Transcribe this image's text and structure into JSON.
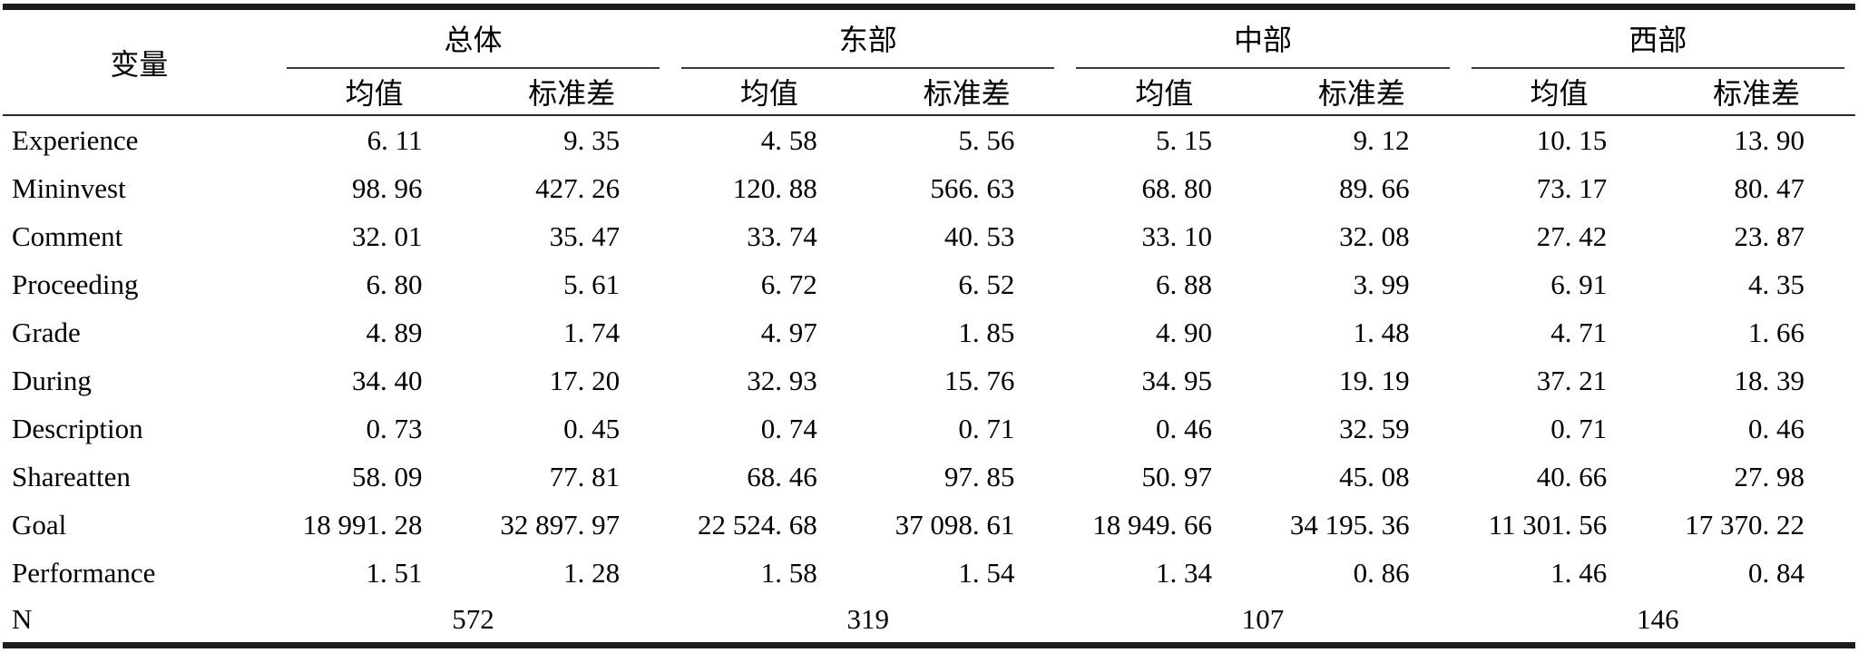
{
  "table": {
    "col_header": "变量",
    "groups": [
      {
        "label": "总体"
      },
      {
        "label": "东部"
      },
      {
        "label": "中部"
      },
      {
        "label": "西部"
      }
    ],
    "sub_headers": [
      "均值",
      "标准差",
      "均值",
      "标准差",
      "均值",
      "标准差",
      "均值",
      "标准差"
    ],
    "rows": [
      {
        "name": "Experience",
        "values": [
          "6. 11",
          "9. 35",
          "4. 58",
          "5. 56",
          "5. 15",
          "9. 12",
          "10. 15",
          "13. 90"
        ]
      },
      {
        "name": "Mininvest",
        "values": [
          "98. 96",
          "427. 26",
          "120. 88",
          "566. 63",
          "68. 80",
          "89. 66",
          "73. 17",
          "80. 47"
        ]
      },
      {
        "name": "Comment",
        "values": [
          "32. 01",
          "35. 47",
          "33. 74",
          "40. 53",
          "33. 10",
          "32. 08",
          "27. 42",
          "23. 87"
        ]
      },
      {
        "name": "Proceeding",
        "values": [
          "6. 80",
          "5. 61",
          "6. 72",
          "6. 52",
          "6. 88",
          "3. 99",
          "6. 91",
          "4. 35"
        ]
      },
      {
        "name": "Grade",
        "values": [
          "4. 89",
          "1. 74",
          "4. 97",
          "1. 85",
          "4. 90",
          "1. 48",
          "4. 71",
          "1. 66"
        ]
      },
      {
        "name": "During",
        "values": [
          "34. 40",
          "17. 20",
          "32. 93",
          "15. 76",
          "34. 95",
          "19. 19",
          "37. 21",
          "18. 39"
        ]
      },
      {
        "name": "Description",
        "values": [
          "0. 73",
          "0. 45",
          "0. 74",
          "0. 71",
          "0. 46",
          "32. 59",
          "0. 71",
          "0. 46"
        ]
      },
      {
        "name": "Shareatten",
        "values": [
          "58. 09",
          "77. 81",
          "68. 46",
          "97. 85",
          "50. 97",
          "45. 08",
          "40. 66",
          "27. 98"
        ]
      },
      {
        "name": "Goal",
        "values": [
          "18 991. 28",
          "32 897. 97",
          "22 524. 68",
          "37 098. 61",
          "18 949. 66",
          "34 195. 36",
          "11 301. 56",
          "17 370. 22"
        ]
      },
      {
        "name": "Performance",
        "values": [
          "1. 51",
          "1. 28",
          "1. 58",
          "1. 54",
          "1. 34",
          "0. 86",
          "1. 46",
          "0. 84"
        ]
      }
    ],
    "n_row": {
      "label": "N",
      "values": [
        "572",
        "319",
        "107",
        "146"
      ]
    }
  },
  "colors": {
    "rule": "#1b1b1b",
    "text": "#000000",
    "background": "#ffffff"
  }
}
